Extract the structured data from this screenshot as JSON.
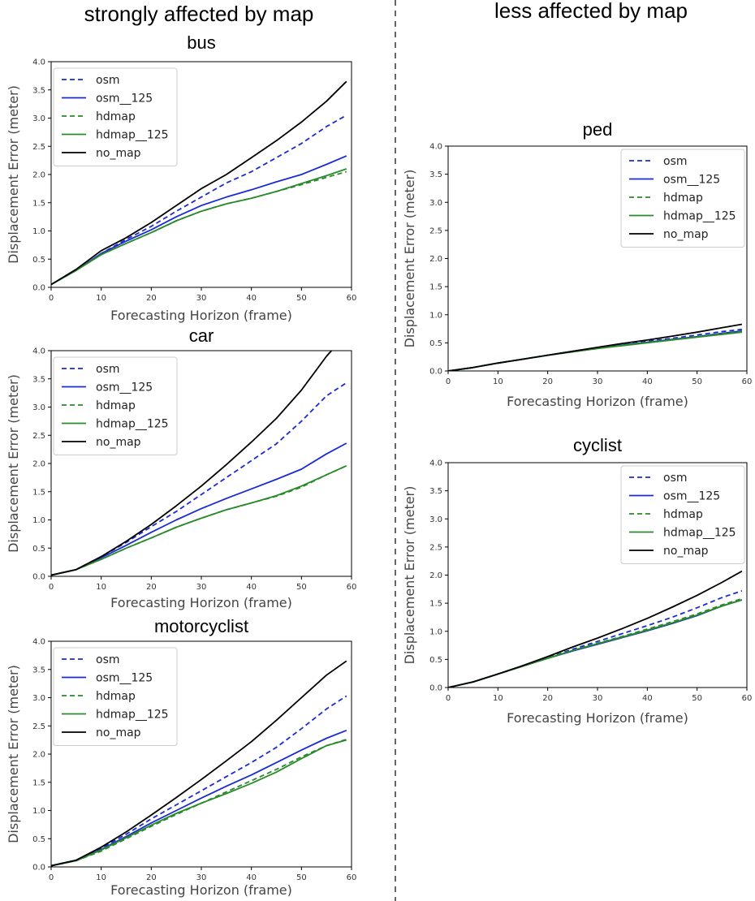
{
  "headers": {
    "left": "strongly affected by map",
    "right": "less affected by map"
  },
  "series_styles": [
    {
      "name": "osm",
      "color": "#1a2bd6",
      "dashed": true
    },
    {
      "name": "osm__125",
      "color": "#1a2bd6",
      "dashed": false
    },
    {
      "name": "hdmap",
      "color": "#2a8a2a",
      "dashed": true
    },
    {
      "name": "hdmap__125",
      "color": "#2a8a2a",
      "dashed": false
    },
    {
      "name": "no_map",
      "color": "#000000",
      "dashed": false
    }
  ],
  "chart_data": [
    {
      "type": "line",
      "title": "bus",
      "xlabel": "Forecasting Horizon (frame)",
      "ylabel": "Displacement Error (meter)",
      "xlim": [
        0,
        60
      ],
      "ylim": [
        0,
        4
      ],
      "xticks": [
        0,
        10,
        20,
        30,
        40,
        50,
        60
      ],
      "yticks": [
        0.0,
        0.5,
        1.0,
        1.5,
        2.0,
        2.5,
        3.0,
        3.5,
        4.0
      ],
      "legend": "top-left",
      "x": [
        0,
        5,
        10,
        15,
        20,
        25,
        30,
        35,
        40,
        45,
        50,
        55,
        59
      ],
      "series": [
        {
          "name": "osm",
          "values": [
            0.05,
            0.3,
            0.6,
            0.85,
            1.08,
            1.35,
            1.6,
            1.85,
            2.05,
            2.3,
            2.55,
            2.85,
            3.05
          ]
        },
        {
          "name": "osm__125",
          "values": [
            0.05,
            0.3,
            0.6,
            0.82,
            1.02,
            1.25,
            1.45,
            1.6,
            1.73,
            1.87,
            2.0,
            2.18,
            2.33
          ]
        },
        {
          "name": "hdmap",
          "values": [
            0.05,
            0.3,
            0.58,
            0.78,
            0.97,
            1.18,
            1.35,
            1.48,
            1.58,
            1.7,
            1.82,
            1.95,
            2.05
          ]
        },
        {
          "name": "hdmap__125",
          "values": [
            0.05,
            0.3,
            0.58,
            0.78,
            0.97,
            1.18,
            1.35,
            1.48,
            1.58,
            1.7,
            1.84,
            1.98,
            2.1
          ]
        },
        {
          "name": "no_map",
          "values": [
            0.05,
            0.32,
            0.65,
            0.88,
            1.15,
            1.45,
            1.75,
            2.0,
            2.3,
            2.6,
            2.93,
            3.3,
            3.65
          ]
        }
      ]
    },
    {
      "type": "line",
      "title": "car",
      "xlabel": "Forecasting Horizon (frame)",
      "ylabel": "Displacement Error (meter)",
      "xlim": [
        0,
        60
      ],
      "ylim": [
        0,
        4
      ],
      "xticks": [
        0,
        10,
        20,
        30,
        40,
        50,
        60
      ],
      "yticks": [
        0.0,
        0.5,
        1.0,
        1.5,
        2.0,
        2.5,
        3.0,
        3.5,
        4.0
      ],
      "legend": "top-left",
      "x": [
        0,
        5,
        10,
        15,
        20,
        25,
        30,
        35,
        40,
        45,
        50,
        55,
        59
      ],
      "series": [
        {
          "name": "osm",
          "values": [
            0.02,
            0.12,
            0.35,
            0.6,
            0.88,
            1.15,
            1.45,
            1.75,
            2.05,
            2.35,
            2.75,
            3.2,
            3.43
          ]
        },
        {
          "name": "osm__125",
          "values": [
            0.02,
            0.12,
            0.33,
            0.55,
            0.78,
            1.0,
            1.2,
            1.38,
            1.55,
            1.72,
            1.9,
            2.17,
            2.36
          ]
        },
        {
          "name": "hdmap",
          "values": [
            0.02,
            0.12,
            0.3,
            0.5,
            0.68,
            0.87,
            1.03,
            1.18,
            1.3,
            1.42,
            1.58,
            1.8,
            1.96
          ]
        },
        {
          "name": "hdmap__125",
          "values": [
            0.02,
            0.12,
            0.3,
            0.5,
            0.68,
            0.87,
            1.03,
            1.18,
            1.3,
            1.43,
            1.6,
            1.8,
            1.96
          ]
        },
        {
          "name": "no_map",
          "values": [
            0.02,
            0.12,
            0.35,
            0.62,
            0.92,
            1.25,
            1.6,
            1.98,
            2.38,
            2.8,
            3.3,
            3.9,
            4.3
          ]
        }
      ]
    },
    {
      "type": "line",
      "title": "motorcyclist",
      "xlabel": "Forecasting Horizon (frame)",
      "ylabel": "Displacement Error (meter)",
      "xlim": [
        0,
        60
      ],
      "ylim": [
        0,
        4
      ],
      "xticks": [
        0,
        10,
        20,
        30,
        40,
        50,
        60
      ],
      "yticks": [
        0.0,
        0.5,
        1.0,
        1.5,
        2.0,
        2.5,
        3.0,
        3.5,
        4.0
      ],
      "legend": "top-left",
      "x": [
        0,
        5,
        10,
        15,
        20,
        25,
        30,
        35,
        40,
        45,
        50,
        55,
        59
      ],
      "series": [
        {
          "name": "osm",
          "values": [
            0.02,
            0.12,
            0.33,
            0.58,
            0.85,
            1.1,
            1.35,
            1.6,
            1.85,
            2.12,
            2.45,
            2.8,
            3.03
          ]
        },
        {
          "name": "osm__125",
          "values": [
            0.02,
            0.12,
            0.31,
            0.54,
            0.78,
            1.0,
            1.22,
            1.43,
            1.63,
            1.85,
            2.07,
            2.28,
            2.42
          ]
        },
        {
          "name": "hdmap",
          "values": [
            0.02,
            0.11,
            0.28,
            0.5,
            0.72,
            0.93,
            1.13,
            1.33,
            1.53,
            1.73,
            1.95,
            2.15,
            2.26
          ]
        },
        {
          "name": "hdmap__125",
          "values": [
            0.02,
            0.11,
            0.3,
            0.52,
            0.74,
            0.95,
            1.13,
            1.3,
            1.48,
            1.68,
            1.92,
            2.15,
            2.25
          ]
        },
        {
          "name": "no_map",
          "values": [
            0.02,
            0.12,
            0.35,
            0.62,
            0.92,
            1.23,
            1.55,
            1.88,
            2.22,
            2.6,
            3.0,
            3.4,
            3.65
          ]
        }
      ]
    },
    {
      "type": "line",
      "title": "ped",
      "xlabel": "Forecasting Horizon (frame)",
      "ylabel": "Displacement Error (meter)",
      "xlim": [
        0,
        60
      ],
      "ylim": [
        0,
        4
      ],
      "xticks": [
        0,
        10,
        20,
        30,
        40,
        50,
        60
      ],
      "yticks": [
        0.0,
        0.5,
        1.0,
        1.5,
        2.0,
        2.5,
        3.0,
        3.5,
        4.0
      ],
      "legend": "top-right",
      "x": [
        0,
        5,
        10,
        15,
        20,
        25,
        30,
        35,
        40,
        45,
        50,
        55,
        59
      ],
      "series": [
        {
          "name": "osm",
          "values": [
            0.0,
            0.06,
            0.14,
            0.21,
            0.28,
            0.35,
            0.41,
            0.47,
            0.53,
            0.58,
            0.64,
            0.7,
            0.74
          ]
        },
        {
          "name": "osm__125",
          "values": [
            0.0,
            0.06,
            0.14,
            0.21,
            0.28,
            0.35,
            0.41,
            0.46,
            0.51,
            0.56,
            0.61,
            0.67,
            0.71
          ]
        },
        {
          "name": "hdmap",
          "values": [
            0.0,
            0.06,
            0.14,
            0.21,
            0.28,
            0.34,
            0.4,
            0.46,
            0.51,
            0.56,
            0.61,
            0.66,
            0.7
          ]
        },
        {
          "name": "hdmap__125",
          "values": [
            0.0,
            0.06,
            0.14,
            0.21,
            0.28,
            0.34,
            0.4,
            0.45,
            0.5,
            0.55,
            0.6,
            0.65,
            0.69
          ]
        },
        {
          "name": "no_map",
          "values": [
            0.0,
            0.06,
            0.14,
            0.21,
            0.28,
            0.35,
            0.42,
            0.49,
            0.55,
            0.62,
            0.69,
            0.77,
            0.83
          ]
        }
      ]
    },
    {
      "type": "line",
      "title": "cyclist",
      "xlabel": "Forecasting Horizon (frame)",
      "ylabel": "Displacement Error (meter)",
      "xlim": [
        0,
        60
      ],
      "ylim": [
        0,
        4
      ],
      "xticks": [
        0,
        10,
        20,
        30,
        40,
        50,
        60
      ],
      "yticks": [
        0.0,
        0.5,
        1.0,
        1.5,
        2.0,
        2.5,
        3.0,
        3.5,
        4.0
      ],
      "legend": "top-right",
      "x": [
        0,
        5,
        10,
        15,
        20,
        25,
        30,
        35,
        40,
        45,
        50,
        55,
        59
      ],
      "series": [
        {
          "name": "osm",
          "values": [
            0.0,
            0.1,
            0.24,
            0.38,
            0.53,
            0.68,
            0.82,
            0.96,
            1.1,
            1.25,
            1.42,
            1.6,
            1.72
          ]
        },
        {
          "name": "osm__125",
          "values": [
            0.0,
            0.1,
            0.24,
            0.38,
            0.52,
            0.65,
            0.77,
            0.89,
            1.01,
            1.14,
            1.28,
            1.45,
            1.56
          ]
        },
        {
          "name": "hdmap",
          "values": [
            0.0,
            0.1,
            0.24,
            0.38,
            0.53,
            0.66,
            0.79,
            0.91,
            1.04,
            1.17,
            1.31,
            1.47,
            1.58
          ]
        },
        {
          "name": "hdmap__125",
          "values": [
            0.0,
            0.1,
            0.24,
            0.38,
            0.52,
            0.66,
            0.78,
            0.9,
            1.02,
            1.15,
            1.29,
            1.45,
            1.56
          ]
        },
        {
          "name": "no_map",
          "values": [
            0.0,
            0.1,
            0.24,
            0.39,
            0.55,
            0.72,
            0.88,
            1.05,
            1.23,
            1.43,
            1.64,
            1.87,
            2.07
          ]
        }
      ]
    }
  ]
}
